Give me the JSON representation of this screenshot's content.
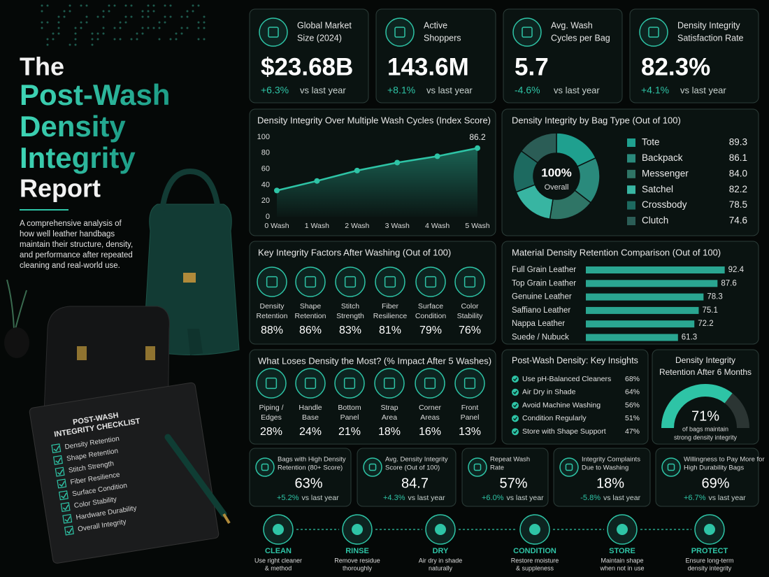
{
  "header": {
    "title": [
      "The",
      "Post-Wash",
      "Density",
      "Integrity",
      "Report"
    ],
    "description": [
      "A comprehensive analysis of",
      "how well leather handbags",
      "maintain their structure, density,",
      "and performance after repeated",
      "cleaning and real-world use."
    ]
  },
  "kpis": [
    {
      "label": [
        "Global Market",
        "Size (2024)"
      ],
      "value": "$23.68B",
      "change": "+6.3%",
      "comparison": "vs last year"
    },
    {
      "label": [
        "Active",
        "Shoppers"
      ],
      "value": "143.6M",
      "change": "+8.1%",
      "comparison": "vs last year"
    },
    {
      "label": [
        "Avg. Wash",
        "Cycles per Bag"
      ],
      "value": "5.7",
      "change": "-4.6%",
      "comparison": "vs last year"
    },
    {
      "label": [
        "Density Integrity",
        "Satisfaction Rate"
      ],
      "value": "82.3%",
      "change": "+4.1%",
      "comparison": "vs last year"
    }
  ],
  "chart_data": [
    {
      "type": "line",
      "title": "Density Integrity Over Multiple Wash Cycles (Index Score)",
      "categories": [
        "0 Wash",
        "1 Wash",
        "2 Wash",
        "3 Wash",
        "4 Wash",
        "5 Wash"
      ],
      "values": [
        33,
        45,
        58,
        68,
        76,
        86.2
      ],
      "color": "#2ec4a6",
      "ylim": [
        0,
        100
      ],
      "yticks": [
        0,
        20,
        40,
        60,
        80,
        100
      ],
      "grid": false
    },
    {
      "type": "donut",
      "title": "Density Integrity by Bag Type (Out of 100)",
      "categories": [
        "Tote",
        "Backpack",
        "Messenger",
        "Satchel",
        "Crossbody",
        "Clutch"
      ],
      "values": [
        89.3,
        86.1,
        84.0,
        82.2,
        78.5,
        74.6
      ],
      "value_labels": [
        "89.3",
        "86.1",
        "84.0",
        "82.2",
        "78.5",
        "74.6"
      ],
      "colors": [
        "#1fa08f",
        "#2a8a7c",
        "#2f7566",
        "#38b5a2",
        "#1d6a60",
        "#2b5d56"
      ],
      "center_label": "100%",
      "center_sublabel": "Overall"
    },
    {
      "type": "hbar",
      "title": "Material Density Retention Comparison (Out of 100)",
      "categories": [
        "Full Grain Leather",
        "Top Grain Leather",
        "Genuine Leather",
        "Saffiano Leather",
        "Nappa Leather",
        "Suede / Nubuck"
      ],
      "values": [
        92.4,
        87.6,
        78.3,
        75.1,
        72.2,
        61.3
      ],
      "color": "#2aa691",
      "xlim": [
        0,
        100
      ]
    },
    {
      "type": "gauge",
      "title": [
        "Density Integrity",
        "Retention After 6 Months"
      ],
      "value": 71,
      "value_label": "71%",
      "caption": [
        "of bags maintain",
        "strong density integrity"
      ],
      "ylim": [
        0,
        100
      ],
      "color": "#2ec4a6"
    }
  ],
  "factors": {
    "title": "Key Integrity Factors After Washing (Out of 100)",
    "items": [
      {
        "label": [
          "Density",
          "Retention"
        ],
        "value": "88%"
      },
      {
        "label": [
          "Shape",
          "Retention"
        ],
        "value": "86%"
      },
      {
        "label": [
          "Stitch",
          "Strength"
        ],
        "value": "83%"
      },
      {
        "label": [
          "Fiber",
          "Resilience"
        ],
        "value": "81%"
      },
      {
        "label": [
          "Surface",
          "Condition"
        ],
        "value": "79%"
      },
      {
        "label": [
          "Color",
          "Stability"
        ],
        "value": "76%"
      }
    ]
  },
  "losses": {
    "title": "What Loses Density the Most? (% Impact After 5 Washes)",
    "items": [
      {
        "label": [
          "Piping /",
          "Edges"
        ],
        "value": "28%"
      },
      {
        "label": [
          "Handle",
          "Base"
        ],
        "value": "24%"
      },
      {
        "label": [
          "Bottom",
          "Panel"
        ],
        "value": "21%"
      },
      {
        "label": [
          "Strap",
          "Area"
        ],
        "value": "18%"
      },
      {
        "label": [
          "Corner",
          "Areas"
        ],
        "value": "16%"
      },
      {
        "label": [
          "Front",
          "Panel"
        ],
        "value": "13%"
      }
    ]
  },
  "insights": {
    "title": "Post-Wash Density: Key Insights",
    "items": [
      {
        "label": "Use pH-Balanced Cleaners",
        "value": "68%"
      },
      {
        "label": "Air Dry in Shade",
        "value": "64%"
      },
      {
        "label": "Avoid Machine Washing",
        "value": "56%"
      },
      {
        "label": "Condition Regularly",
        "value": "51%"
      },
      {
        "label": "Store with Shape Support",
        "value": "47%"
      }
    ]
  },
  "metrics": [
    {
      "label": [
        "Bags with High Density",
        "Retention (80+ Score)"
      ],
      "value": "63%",
      "change": "+5.2%",
      "comparison": "vs last year"
    },
    {
      "label": [
        "Avg. Density Integrity",
        "Score (Out of 100)"
      ],
      "value": "84.7",
      "change": "+4.3%",
      "comparison": "vs last year"
    },
    {
      "label": [
        "Repeat Wash",
        "Rate"
      ],
      "value": "57%",
      "change": "+6.0%",
      "comparison": "vs last year"
    },
    {
      "label": [
        "Integrity Complaints",
        "Due to Washing"
      ],
      "value": "18%",
      "change": "-5.8%",
      "comparison": "vs last year"
    },
    {
      "label": [
        "Willingness to Pay More for",
        "High Durability Bags"
      ],
      "value": "69%",
      "change": "+6.7%",
      "comparison": "vs last year"
    }
  ],
  "process": [
    {
      "name": "CLEAN",
      "desc": [
        "Use right cleaner",
        "& method"
      ]
    },
    {
      "name": "RINSE",
      "desc": [
        "Remove residue",
        "thoroughly"
      ]
    },
    {
      "name": "DRY",
      "desc": [
        "Air dry in shade",
        "naturally"
      ]
    },
    {
      "name": "CONDITION",
      "desc": [
        "Restore moisture",
        "& suppleness"
      ]
    },
    {
      "name": "STORE",
      "desc": [
        "Maintain shape",
        "when not in use"
      ]
    },
    {
      "name": "PROTECT",
      "desc": [
        "Ensure long-term",
        "density integrity"
      ]
    }
  ],
  "checklist": {
    "title": [
      "POST-WASH",
      "INTEGRITY CHECKLIST"
    ],
    "items": [
      "Density Retention",
      "Shape Retention",
      "Stitch Strength",
      "Fiber Resilience",
      "Surface Condition",
      "Color Stability",
      "Hardware Durability",
      "Overall Integrity"
    ]
  }
}
